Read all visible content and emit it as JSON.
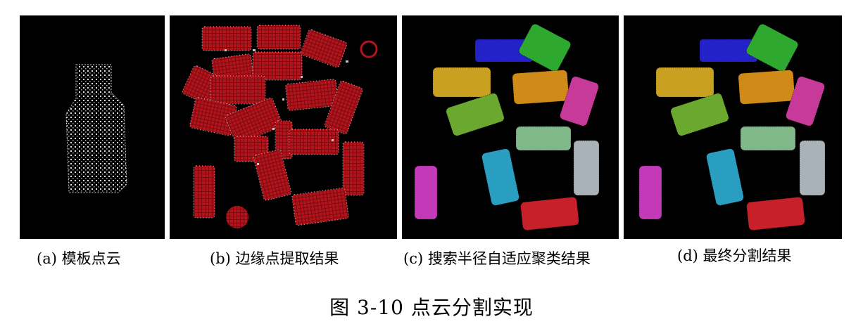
{
  "panels": [
    {
      "id": "a",
      "caption": "(a) 模板点云"
    },
    {
      "id": "b",
      "caption": "(b) 边缘点提取结果"
    },
    {
      "id": "c",
      "caption": "(c) 搜索半径自适应聚类结果"
    },
    {
      "id": "d",
      "caption": "(d) 最终分割结果"
    }
  ],
  "figure_caption": "图 3-10  点云分割实现",
  "colors": {
    "background": "#000000",
    "template_points": "#d9d9d9",
    "edge_red": "#b3141c",
    "edge_points": "#c8c8c8",
    "clusters": [
      "#2222c8",
      "#2ea82e",
      "#c9a020",
      "#d08a18",
      "#c83a9a",
      "#6aa830",
      "#80b88a",
      "#a9b2b8",
      "#2a9ec0",
      "#c23ab8",
      "#c8202a"
    ]
  }
}
